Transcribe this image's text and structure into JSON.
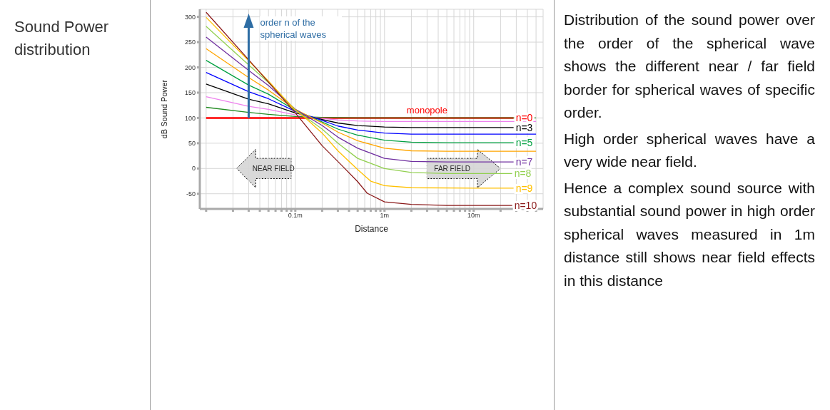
{
  "chart_data": {
    "type": "line",
    "title": "Sound Power distribution",
    "xlabel": "Distance",
    "ylabel": "dB Sound Power",
    "log": "x",
    "grid": true,
    "legend": false,
    "marker": "none",
    "line_style": "solid",
    "xlim": [
      0.0085,
      60
    ],
    "ylim": [
      -80,
      315
    ],
    "xticks": [
      {
        "value": 0.01,
        "label": null
      },
      {
        "value": 0.02,
        "label": null
      },
      {
        "value": 0.03,
        "label": null
      },
      {
        "value": 0.04,
        "label": null
      },
      {
        "value": 0.05,
        "label": null
      },
      {
        "value": 0.06,
        "label": null
      },
      {
        "value": 0.07,
        "label": null
      },
      {
        "value": 0.08,
        "label": null
      },
      {
        "value": 0.09,
        "label": null
      },
      {
        "value": 0.1,
        "label": "0.1m"
      },
      {
        "value": 0.2,
        "label": null
      },
      {
        "value": 0.3,
        "label": null
      },
      {
        "value": 0.4,
        "label": null
      },
      {
        "value": 0.5,
        "label": null
      },
      {
        "value": 0.6,
        "label": null
      },
      {
        "value": 0.7,
        "label": null
      },
      {
        "value": 0.8,
        "label": null
      },
      {
        "value": 0.9,
        "label": null
      },
      {
        "value": 1,
        "label": "1m"
      },
      {
        "value": 2,
        "label": null
      },
      {
        "value": 3,
        "label": null
      },
      {
        "value": 4,
        "label": null
      },
      {
        "value": 5,
        "label": null
      },
      {
        "value": 6,
        "label": null
      },
      {
        "value": 7,
        "label": null
      },
      {
        "value": 8,
        "label": null
      },
      {
        "value": 9,
        "label": null
      },
      {
        "value": 10,
        "label": "10m"
      },
      {
        "value": 20,
        "label": null
      },
      {
        "value": 30,
        "label": null
      },
      {
        "value": 40,
        "label": null
      },
      {
        "value": 50,
        "label": null
      }
    ],
    "yticks": [
      -50,
      0,
      50,
      100,
      150,
      200,
      250,
      300
    ],
    "series": [
      {
        "name": "n=0",
        "color": "#ff0000",
        "x": [
          0.01,
          0.1,
          1,
          10,
          28
        ],
        "values": [
          100,
          100,
          100,
          100,
          100
        ]
      },
      {
        "color": "#228b22",
        "x": [
          0.01,
          0.03,
          0.05,
          0.1,
          0.2,
          0.5,
          1,
          10,
          50
        ],
        "values": [
          121,
          111,
          107,
          103,
          101,
          100,
          100,
          100,
          100
        ]
      },
      {
        "color": "#ee82ee",
        "x": [
          0.01,
          0.03,
          0.05,
          0.1,
          0.2,
          0.3,
          0.5,
          1,
          10,
          50
        ],
        "values": [
          142,
          123,
          117,
          106,
          99,
          96,
          94,
          93,
          93,
          93
        ]
      },
      {
        "name": "n=3",
        "color": "#000000",
        "x": [
          0.01,
          0.03,
          0.05,
          0.1,
          0.2,
          0.3,
          0.5,
          1,
          2,
          10,
          28
        ],
        "values": [
          167,
          137,
          128,
          110,
          97,
          90,
          85,
          82,
          81,
          81,
          81
        ]
      },
      {
        "color": "#0000ff",
        "x": [
          0.01,
          0.03,
          0.05,
          0.1,
          0.2,
          0.3,
          0.5,
          1,
          2,
          10,
          50
        ],
        "values": [
          190,
          152,
          138,
          113,
          95,
          84,
          76,
          70,
          68,
          68,
          68
        ]
      },
      {
        "name": "n=5",
        "color": "#00a040",
        "x": [
          0.01,
          0.03,
          0.05,
          0.1,
          0.2,
          0.3,
          0.5,
          1,
          2,
          5,
          10,
          28
        ],
        "values": [
          214,
          165,
          147,
          115,
          92,
          78,
          66,
          56,
          52,
          51,
          51,
          51
        ]
      },
      {
        "color": "#ffa500",
        "x": [
          0.01,
          0.03,
          0.05,
          0.1,
          0.2,
          0.3,
          0.5,
          1,
          2,
          5,
          10,
          50
        ],
        "values": [
          237,
          180,
          155,
          117,
          90,
          72,
          55,
          40,
          35,
          34,
          34,
          34
        ]
      },
      {
        "name": "n=7",
        "color": "#7030a0",
        "x": [
          0.01,
          0.03,
          0.05,
          0.1,
          0.2,
          0.3,
          0.5,
          1,
          2,
          5,
          10,
          28
        ],
        "values": [
          260,
          194,
          164,
          117,
          85,
          62,
          40,
          20,
          14,
          13,
          13,
          13
        ]
      },
      {
        "name": "n=8",
        "color": "#92d050",
        "x": [
          0.01,
          0.03,
          0.05,
          0.1,
          0.2,
          0.3,
          0.5,
          1,
          2,
          5,
          10,
          27
        ],
        "values": [
          281,
          205,
          170,
          116,
          78,
          50,
          20,
          0,
          -8,
          -10,
          -10,
          -10
        ]
      },
      {
        "name": "n=9",
        "color": "#ffc000",
        "x": [
          0.01,
          0.03,
          0.05,
          0.1,
          0.13,
          0.2,
          0.3,
          0.5,
          0.7,
          1,
          2,
          10,
          28
        ],
        "values": [
          299,
          213,
          173,
          115,
          100,
          70,
          35,
          -2,
          -25,
          -34,
          -38,
          -39,
          -39
        ]
      },
      {
        "name": "n=10",
        "color": "#8b1a1a",
        "x": [
          0.01,
          0.03,
          0.05,
          0.1,
          0.2,
          0.35,
          0.5,
          0.64,
          1,
          2,
          5,
          10,
          27
        ],
        "values": [
          309,
          215,
          171,
          110,
          45,
          2,
          -26,
          -49,
          -66,
          -71,
          -73,
          -73,
          -73
        ]
      }
    ],
    "annotations": [
      {
        "text": "order n of the spherical waves",
        "x": 0.03,
        "y": 100
      },
      {
        "text": "monopole",
        "x": 3,
        "y": 100
      },
      "NEAR FIELD",
      "FAR FIELD",
      "Distribution of the sound power over the order of the spherical wave shows the different near / far field border for spherical waves of specific order.",
      "High order spherical waves have a very wide near field.",
      "Hence a complex sound source with substantial sound power in high order spherical waves measured in 1m distance still shows near field effects in this distance"
    ]
  }
}
